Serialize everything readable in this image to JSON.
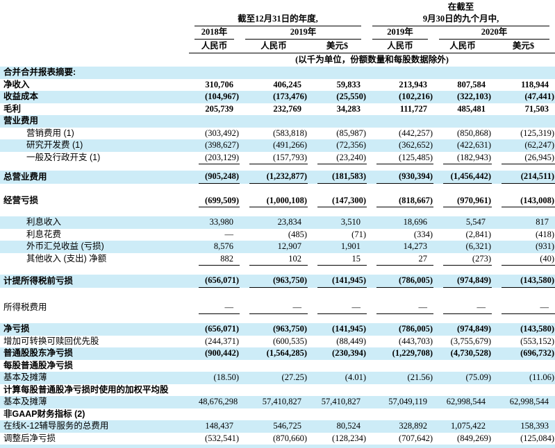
{
  "colors": {
    "row_highlight": "#cdecf7",
    "rule": "#000000",
    "text": "#000000"
  },
  "header": {
    "nine_months_prefix": "在截至",
    "group_year_ended": "截至12月31日的年度,",
    "group_nine_months": "9月30日的九个月中,",
    "years": [
      "2018年",
      "2019年",
      "2019年",
      "2020年"
    ],
    "currencies": [
      "人民币",
      "人民币",
      "美元$",
      "人民币",
      "人民币",
      "美元$"
    ],
    "units_note": "(以千为单位，份额数量和每股数据除外)"
  },
  "table": {
    "rows": [
      {
        "type": "section",
        "label": "合并合并报表摘要:",
        "shaded": true,
        "bold": true
      },
      {
        "type": "data",
        "label": "净收入",
        "bold": true,
        "values": [
          "310,706",
          "406,245",
          "59,833",
          "213,943",
          "807,584",
          "118,944"
        ]
      },
      {
        "type": "data",
        "label": "收益成本",
        "bold": true,
        "shaded": true,
        "values": [
          "(104,967)",
          "(173,476)",
          "(25,550)",
          "(102,216)",
          "(322,103)",
          "(47,441)"
        ]
      },
      {
        "type": "data",
        "label": "毛利",
        "bold": true,
        "values": [
          "205,739",
          "232,769",
          "34,283",
          "111,727",
          "485,481",
          "71,503"
        ]
      },
      {
        "type": "section",
        "label": "营业费用",
        "shaded": true,
        "bold": true
      },
      {
        "type": "data",
        "label": "营销费用 (1)",
        "indent": true,
        "values": [
          "(303,492)",
          "(583,818)",
          "(85,987)",
          "(442,257)",
          "(850,868)",
          "(125,319)"
        ]
      },
      {
        "type": "data",
        "label": "研究开发费 (1)",
        "indent": true,
        "shaded": true,
        "values": [
          "(398,627)",
          "(491,266)",
          "(72,356)",
          "(362,652)",
          "(422,631)",
          "(62,247)"
        ]
      },
      {
        "type": "data",
        "label": "一般及行政开支 (1)",
        "indent": true,
        "rule": true,
        "values": [
          "(203,129)",
          "(157,793)",
          "(23,240)",
          "(125,485)",
          "(182,943)",
          "(26,945)"
        ]
      },
      {
        "type": "spacer",
        "variant": "sm"
      },
      {
        "type": "data",
        "label": "总营业费用",
        "bold": true,
        "shaded": true,
        "rule": true,
        "values": [
          "(905,248)",
          "(1,232,877)",
          "(181,583)",
          "(930,394)",
          "(1,456,442)",
          "(214,511)"
        ]
      },
      {
        "type": "spacer",
        "variant": "lg"
      },
      {
        "type": "data",
        "label": "经营亏损",
        "bold": true,
        "rule": true,
        "values": [
          "(699,509)",
          "(1,000,108)",
          "(147,300)",
          "(818,667)",
          "(970,961)",
          "(143,008)"
        ]
      },
      {
        "type": "spacer",
        "variant": "md"
      },
      {
        "type": "data",
        "label": "利息收入",
        "indent": true,
        "shaded": true,
        "values": [
          "33,980",
          "23,834",
          "3,510",
          "18,696",
          "5,547",
          "817"
        ]
      },
      {
        "type": "data",
        "label": "利息花费",
        "indent": true,
        "values": [
          "—",
          "(485)",
          "(71)",
          "(334)",
          "(2,841)",
          "(418)"
        ]
      },
      {
        "type": "data",
        "label": "外币汇兑收益 (亏损)",
        "indent": true,
        "shaded": true,
        "values": [
          "8,576",
          "12,907",
          "1,901",
          "14,273",
          "(6,321)",
          "(931)"
        ]
      },
      {
        "type": "data",
        "label": "其他收入 (支出) 净额",
        "indent": true,
        "rule": true,
        "values": [
          "882",
          "102",
          "15",
          "27",
          "(273)",
          "(40)"
        ]
      },
      {
        "type": "spacer",
        "variant": "md"
      },
      {
        "type": "data",
        "label": "计提所得税前亏损",
        "bold": true,
        "shaded": true,
        "rule": true,
        "values": [
          "(656,071)",
          "(963,750)",
          "(141,945)",
          "(786,005)",
          "(974,849)",
          "(143,580)"
        ]
      },
      {
        "type": "spacer",
        "variant": "xl"
      },
      {
        "type": "data",
        "label": "所得税费用",
        "rule": true,
        "values": [
          "—",
          "—",
          "—",
          "—",
          "—",
          "—"
        ]
      },
      {
        "type": "spacer",
        "variant": "md"
      },
      {
        "type": "data",
        "label": "净亏损",
        "bold": true,
        "shaded": true,
        "values": [
          "(656,071)",
          "(963,750)",
          "(141,945)",
          "(786,005)",
          "(974,849)",
          "(143,580)"
        ]
      },
      {
        "type": "data",
        "label": "增加可转换可赎回优先股",
        "values": [
          "(244,371)",
          "(600,535)",
          "(88,449)",
          "(443,703)",
          "(3,755,679)",
          "(553,152)"
        ]
      },
      {
        "type": "data",
        "label": "普通股股东净亏损",
        "bold": true,
        "shaded": true,
        "values": [
          "(900,442)",
          "(1,564,285)",
          "(230,394)",
          "(1,229,708)",
          "(4,730,528)",
          "(696,732)"
        ]
      },
      {
        "type": "section",
        "label": "每股普通股净亏损",
        "bold": true
      },
      {
        "type": "data",
        "label": "基本及摊薄",
        "shaded": true,
        "values": [
          "(18.50)",
          "(27.25)",
          "(4.01)",
          "(21.56)",
          "(75.09)",
          "(11.06)"
        ]
      },
      {
        "type": "section",
        "label": "计算每股普通股净亏损时使用的加权平均股",
        "bold": true
      },
      {
        "type": "data",
        "label": "基本及摊薄",
        "shaded": true,
        "values": [
          "48,676,298",
          "57,410,827",
          "57,410,827",
          "57,049,119",
          "62,998,544",
          "62,998,544"
        ]
      },
      {
        "type": "section",
        "label": "非GAAP财务指标 (2)",
        "bold": true
      },
      {
        "type": "data",
        "label": "在线K-12辅导服务的总费用",
        "shaded": true,
        "values": [
          "148,437",
          "546,725",
          "80,524",
          "328,892",
          "1,075,422",
          "158,393"
        ]
      },
      {
        "type": "data",
        "label": "调整后净亏损",
        "values": [
          "(532,541)",
          "(870,660)",
          "(128,234)",
          "(707,642)",
          "(849,269)",
          "(125,084)"
        ]
      },
      {
        "type": "spacer",
        "variant": "strip",
        "shaded": true
      }
    ]
  }
}
